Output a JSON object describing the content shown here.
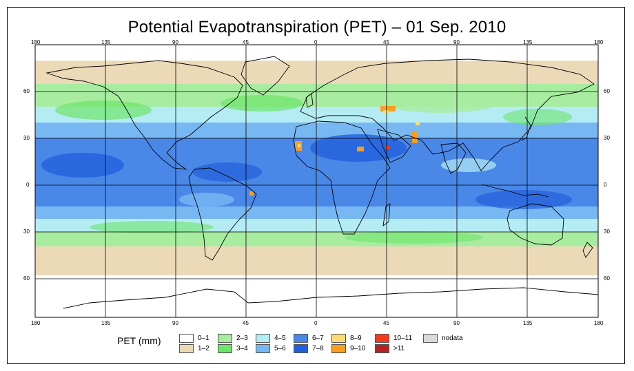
{
  "title": "Potential Evapotranspiration (PET) – 01 Sep. 2010",
  "lon_ticks": [
    "180",
    "135",
    "90",
    "45",
    "0",
    "45",
    "90",
    "135",
    "180"
  ],
  "lat_ticks": [
    "60",
    "30",
    "0",
    "30",
    "60"
  ],
  "legend": {
    "title": "PET (mm)",
    "items": [
      {
        "label": "0–1",
        "color": "#ffffff"
      },
      {
        "label": "1–2",
        "color": "#ecd9b8"
      },
      {
        "label": "2–3",
        "color": "#a8eca0"
      },
      {
        "label": "3–4",
        "color": "#6ee66a"
      },
      {
        "label": "4–5",
        "color": "#b4ecf4"
      },
      {
        "label": "5–6",
        "color": "#78b8f2"
      },
      {
        "label": "6–7",
        "color": "#4a88e8"
      },
      {
        "label": "7–8",
        "color": "#2160dc"
      },
      {
        "label": "8–9",
        "color": "#fcdc74"
      },
      {
        "label": "9–10",
        "color": "#fc9d1c"
      },
      {
        "label": "10–11",
        "color": "#f43c1c"
      },
      {
        "label": ">11",
        "color": "#b42424"
      },
      {
        "label": "nodata",
        "color": "#d9d9d9"
      }
    ]
  }
}
